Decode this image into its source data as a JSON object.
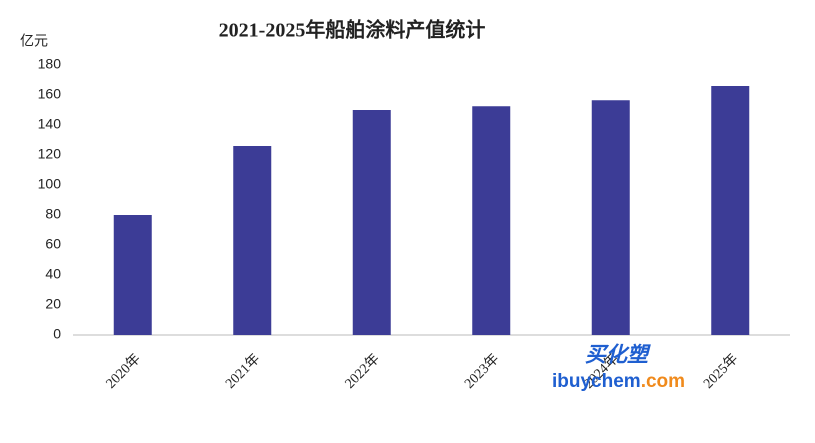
{
  "chart_data": {
    "type": "bar",
    "title": "2021-2025年船舶涂料产值统计",
    "y_unit": "亿元",
    "categories": [
      "2020年",
      "2021年",
      "2022年",
      "2023年",
      "2024年",
      "2025年"
    ],
    "values": [
      80,
      126,
      150,
      152.5,
      156.5,
      166
    ],
    "color": "#3c3c96",
    "ylim": [
      0,
      180
    ],
    "yticks": [
      0,
      20,
      40,
      60,
      80,
      100,
      120,
      140,
      160,
      180
    ],
    "grid": false
  },
  "watermark": {
    "brand": "买化塑",
    "site": "ibuychem",
    "domain": ".com"
  }
}
